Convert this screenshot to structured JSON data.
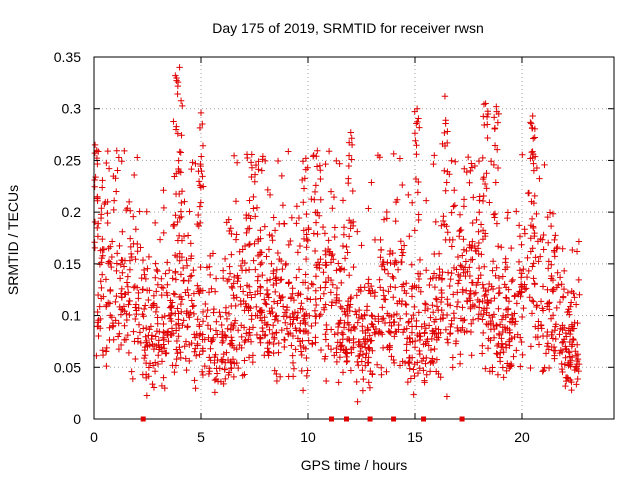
{
  "chart_data": {
    "type": "scatter",
    "title": "Day 175 of 2019, SRMTID for receiver rwsn",
    "xlabel": "GPS time / hours",
    "ylabel": "SRMTID / TECUs",
    "xlim": [
      0,
      24.3
    ],
    "ylim": [
      0,
      0.35
    ],
    "xticks": [
      0,
      5,
      10,
      15,
      20
    ],
    "xtick_labels": [
      "0",
      "5",
      "10",
      "15",
      "20"
    ],
    "yticks": [
      0,
      0.05,
      0.1,
      0.15,
      0.2,
      0.25,
      0.3,
      0.35
    ],
    "ytick_labels": [
      "0",
      "0.05",
      "0.1",
      "0.15",
      "0.2",
      "0.25",
      "0.3",
      "0.35"
    ],
    "grid": true,
    "marker": "plus",
    "series_color": "#e00000",
    "zero_markers_x": [
      2.3,
      11.1,
      11.8,
      12.9,
      14.0,
      15.4,
      17.2
    ],
    "zero_marker_vals": [
      0,
      0,
      0,
      0,
      0,
      0,
      0
    ],
    "series": [
      {
        "name": "SRMTID",
        "x_range": [
          0,
          22.7
        ],
        "n_points": 1900,
        "mean_value": 0.105,
        "notable_peaks": [
          {
            "x": 0.05,
            "y": 0.265
          },
          {
            "x": 3.8,
            "y": 0.332
          },
          {
            "x": 4.0,
            "y": 0.34
          },
          {
            "x": 5.0,
            "y": 0.296
          },
          {
            "x": 9.9,
            "y": 0.252
          },
          {
            "x": 12.0,
            "y": 0.277
          },
          {
            "x": 15.1,
            "y": 0.3
          },
          {
            "x": 16.4,
            "y": 0.312
          },
          {
            "x": 18.3,
            "y": 0.305
          },
          {
            "x": 18.8,
            "y": 0.302
          },
          {
            "x": 20.5,
            "y": 0.293
          }
        ]
      }
    ]
  }
}
